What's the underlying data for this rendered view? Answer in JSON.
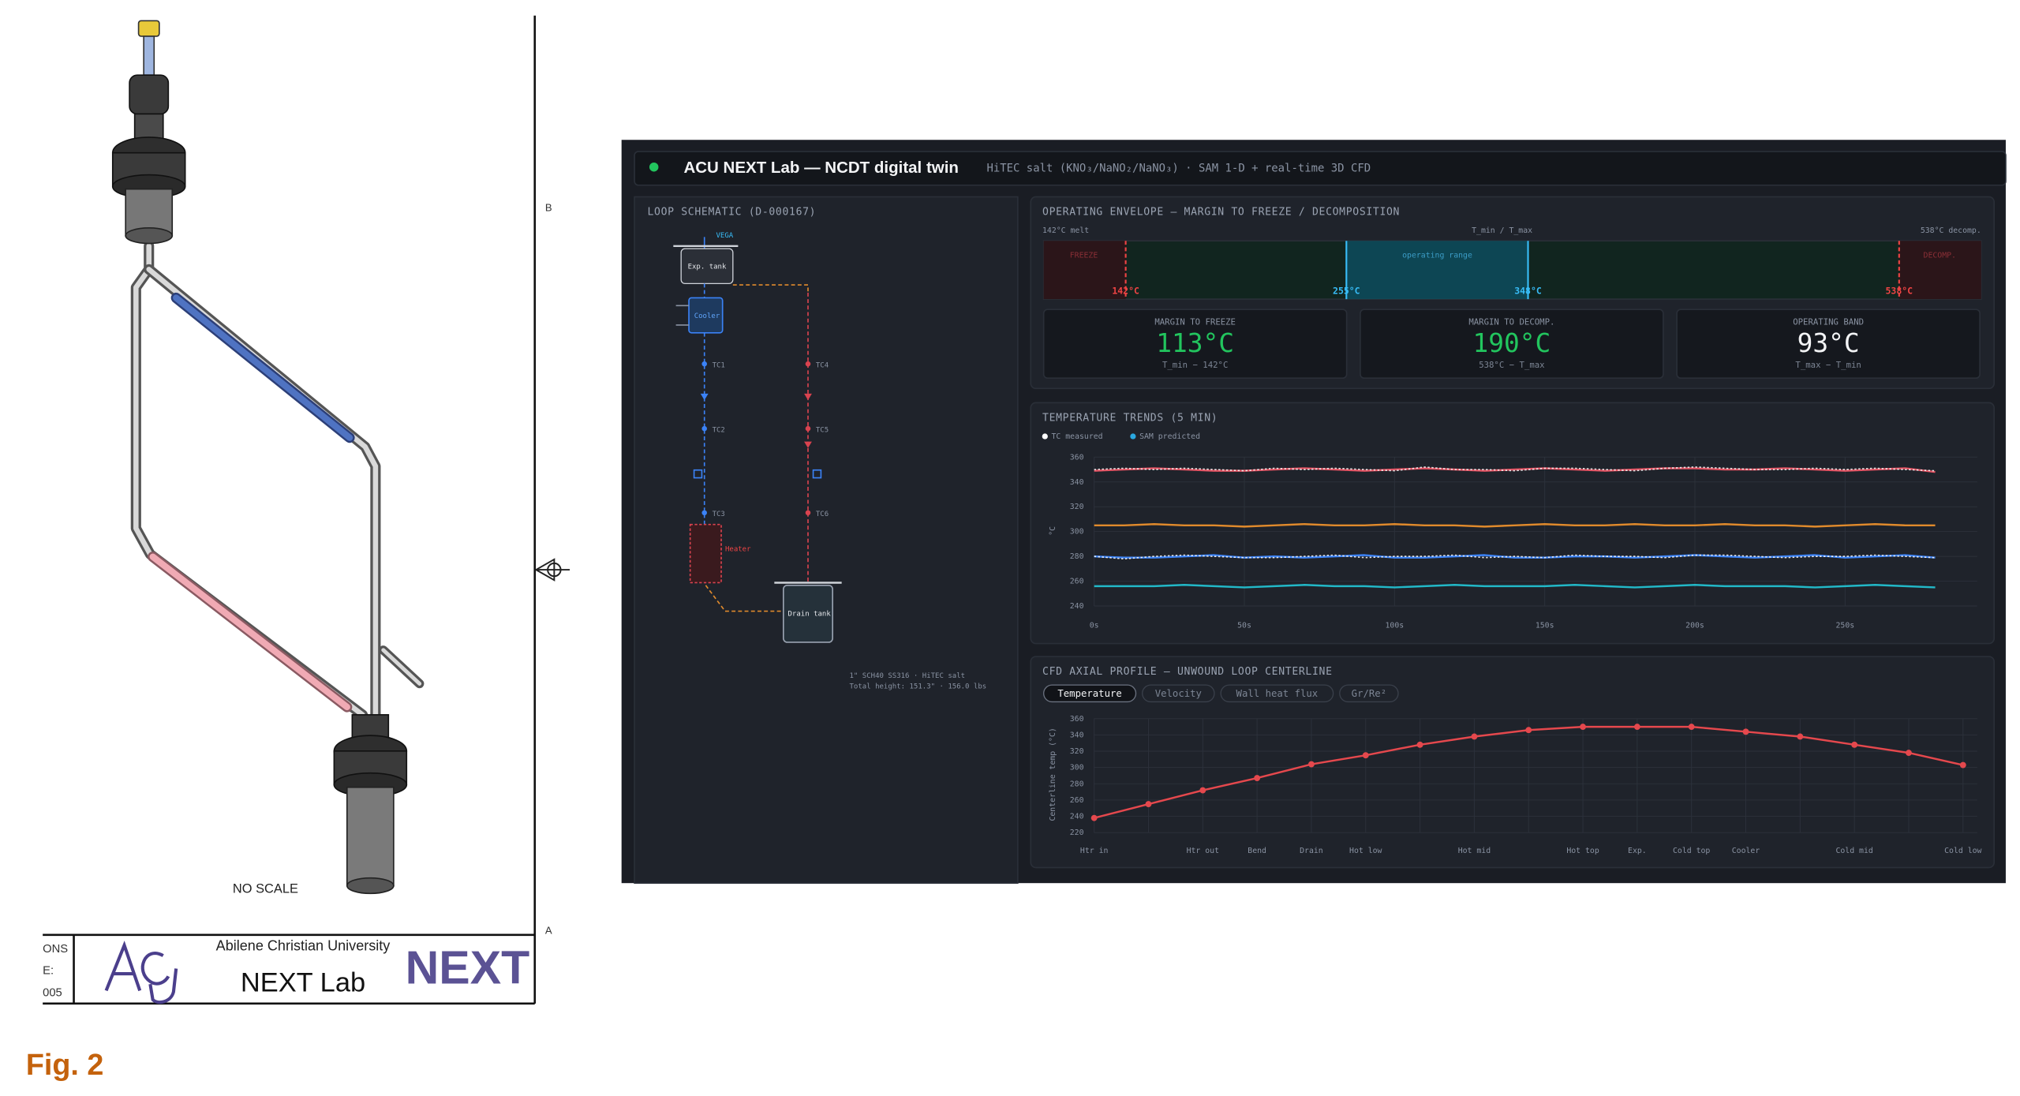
{
  "figure_label": "Fig. 2",
  "drawing": {
    "zone_labels": [
      "B",
      "A"
    ],
    "note": "NO SCALE",
    "title_block": {
      "revision_fragments": [
        "ONS",
        "E:",
        "005"
      ],
      "university": "Abilene Christian University",
      "lab": "NEXT Lab",
      "logo": "NEXT"
    }
  },
  "dashboard": {
    "header": {
      "title": "ACU NEXT Lab — NCDT digital twin",
      "subtitle": "HiTEC salt (KNO₃/NaNO₂/NaNO₃) · SAM 1-D + real-time 3D CFD"
    },
    "schematic": {
      "title": "LOOP SCHEMATIC (D-000167)",
      "labels": {
        "sensor": "VEGA",
        "exp_tank": "Exp. tank",
        "cooler": "Cooler",
        "heater": "Heater",
        "drain_tank": "Drain tank",
        "tcs": [
          "TC1",
          "TC2",
          "TC3",
          "TC4",
          "TC5",
          "TC6"
        ]
      },
      "notes": [
        "1\" SCH40 SS316 · HiTEC salt",
        "Total height: 151.3\" · 156.0 lbs"
      ]
    },
    "envelope": {
      "title": "OPERATING ENVELOPE — MARGIN TO FREEZE / DECOMPOSITION",
      "captions": [
        "142°C melt",
        "T_min / T_max",
        "538°C decomp."
      ],
      "zones": [
        "FREEZE",
        "operating range",
        "DECOMP."
      ],
      "range": [
        100,
        580
      ],
      "markers": [
        {
          "value": 142,
          "label": "142°C",
          "color": "#ef4444"
        },
        {
          "value": 255,
          "label": "255°C",
          "color": "#38bdf8"
        },
        {
          "value": 348,
          "label": "348°C",
          "color": "#38bdf8"
        },
        {
          "value": 538,
          "label": "538°C",
          "color": "#ef4444"
        }
      ],
      "cards": [
        {
          "title": "MARGIN TO FREEZE",
          "value": "113°C",
          "formula": "T_min − 142°C",
          "color": "#22c55e"
        },
        {
          "title": "MARGIN TO DECOMP.",
          "value": "190°C",
          "formula": "538°C − T_max",
          "color": "#22c55e"
        },
        {
          "title": "OPERATING BAND",
          "value": "93°C",
          "formula": "T_max − T_min",
          "color": "#f3f4f6"
        }
      ]
    }
  },
  "chart_data": [
    {
      "type": "line",
      "title": "TEMPERATURE TRENDS (5 MIN)",
      "y_label": "°C",
      "legend": [
        {
          "name": "TC measured",
          "color": "#ffffff"
        },
        {
          "name": "SAM predicted",
          "color": "#2aa8e0"
        }
      ],
      "x": [
        0,
        10,
        20,
        30,
        40,
        50,
        60,
        70,
        80,
        90,
        100,
        110,
        120,
        130,
        140,
        150,
        160,
        170,
        180,
        190,
        200,
        210,
        220,
        230,
        240,
        250,
        260,
        270,
        280
      ],
      "xlim": [
        0,
        294
      ],
      "xticks": [
        {
          "value": 0,
          "label": "0s"
        },
        {
          "value": 50,
          "label": "50s"
        },
        {
          "value": 100,
          "label": "100s"
        },
        {
          "value": 150,
          "label": "150s"
        },
        {
          "value": 200,
          "label": "200s"
        },
        {
          "value": 250,
          "label": "250s"
        }
      ],
      "ylim": [
        240,
        360
      ],
      "yticks": [
        240,
        260,
        280,
        300,
        320,
        340,
        360
      ],
      "grid": true,
      "series": [
        {
          "color": "#e05262",
          "style": "solid",
          "values": [
            349,
            350,
            351,
            350,
            349,
            349,
            350,
            351,
            350,
            349,
            350,
            351,
            350,
            349,
            350,
            351,
            350,
            349,
            350,
            351,
            351,
            350,
            350,
            351,
            350,
            349,
            350,
            351,
            348
          ]
        },
        {
          "color": "#e08a2c",
          "style": "solid",
          "values": [
            305,
            305,
            306,
            305,
            305,
            304,
            305,
            306,
            305,
            305,
            306,
            305,
            305,
            304,
            305,
            306,
            305,
            305,
            306,
            305,
            305,
            306,
            305,
            305,
            304,
            305,
            306,
            305,
            305
          ]
        },
        {
          "color": "#3b82f6",
          "style": "solid",
          "values": [
            280,
            279,
            279,
            280,
            281,
            279,
            280,
            279,
            280,
            281,
            279,
            279,
            280,
            281,
            279,
            279,
            280,
            280,
            279,
            280,
            281,
            280,
            279,
            280,
            281,
            279,
            280,
            281,
            279
          ]
        },
        {
          "color": "#22b8c8",
          "style": "solid",
          "values": [
            256,
            256,
            256,
            257,
            256,
            255,
            256,
            257,
            256,
            256,
            255,
            256,
            257,
            256,
            256,
            256,
            257,
            256,
            255,
            256,
            257,
            256,
            256,
            256,
            255,
            256,
            257,
            256,
            255
          ]
        },
        {
          "color": "#ffffff",
          "style": "dotted",
          "values": [
            350,
            351,
            350,
            351,
            350,
            349,
            351,
            350,
            351,
            350,
            349,
            352,
            350,
            350,
            349,
            351,
            351,
            350,
            349,
            351,
            352,
            351,
            350,
            350,
            351,
            350,
            351,
            350,
            349
          ]
        },
        {
          "color": "#ffffff",
          "style": "dotted",
          "values": [
            280,
            278,
            280,
            281,
            280,
            279,
            279,
            280,
            281,
            279,
            280,
            280,
            281,
            279,
            280,
            279,
            281,
            280,
            280,
            279,
            281,
            281,
            280,
            279,
            280,
            280,
            281,
            280,
            279
          ]
        }
      ]
    },
    {
      "type": "line",
      "title": "CFD AXIAL PROFILE — UNWOUND LOOP CENTERLINE",
      "tabs": [
        "Temperature",
        "Velocity",
        "Wall heat flux",
        "Gr/Re²"
      ],
      "active_tab": 0,
      "y_label": "Centerline temp (°C)",
      "categories": [
        "Htr in",
        null,
        "Htr out",
        "Bend",
        "Drain",
        "Hot low",
        null,
        "Hot mid",
        null,
        "Hot top",
        "Exp.",
        "Cold top",
        "Cooler",
        null,
        "Cold mid",
        null,
        "Cold low"
      ],
      "values": [
        238,
        255,
        272,
        287,
        304,
        315,
        328,
        338,
        346,
        350,
        350,
        350,
        344,
        338,
        328,
        318,
        303
      ],
      "color": "#e5484d",
      "markers": true,
      "ylim": [
        220,
        360
      ],
      "yticks": [
        220,
        240,
        260,
        280,
        300,
        320,
        340,
        360
      ],
      "grid": true
    }
  ]
}
